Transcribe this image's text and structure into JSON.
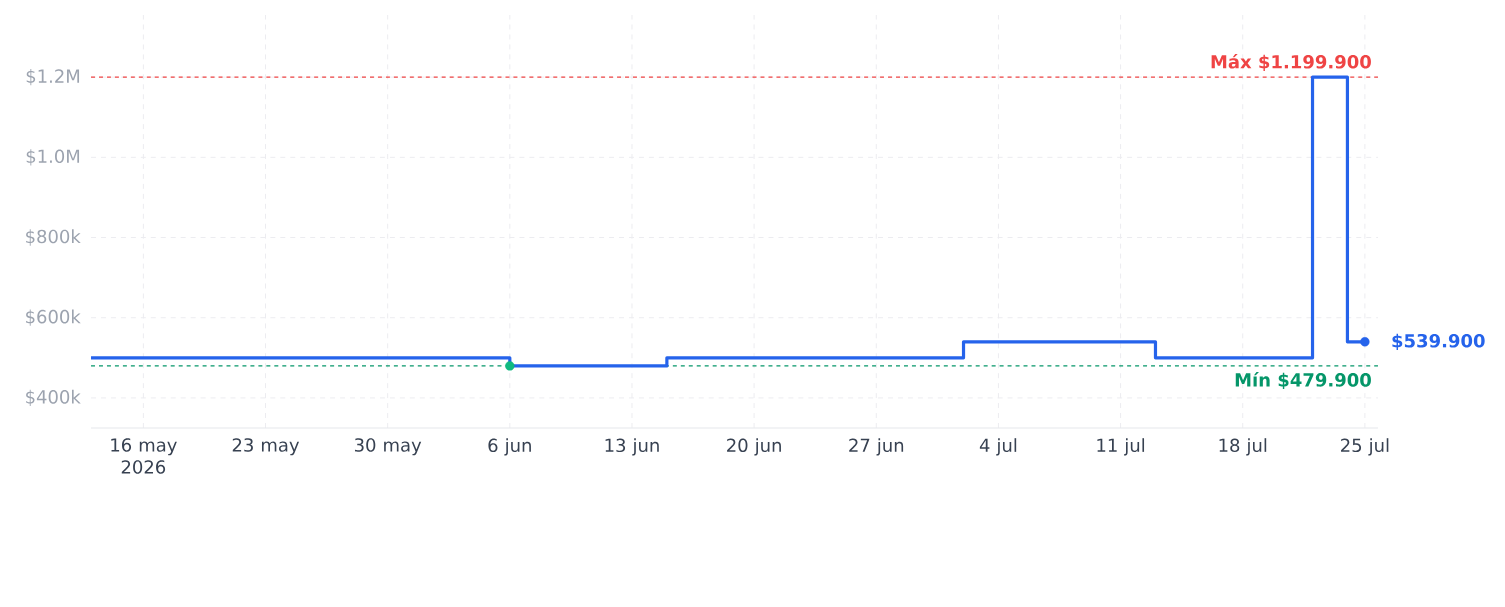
{
  "chart_data": {
    "type": "step",
    "x": [
      "2026-05-13",
      "2026-06-06",
      "2026-06-15",
      "2026-07-02",
      "2026-07-13",
      "2026-07-22",
      "2026-07-24",
      "2026-07-25"
    ],
    "series": [
      {
        "color": "#2563eb",
        "marker": "none",
        "values": [
          499900,
          479900,
          499900,
          539900,
          499900,
          1199900,
          539900,
          539900
        ]
      },
      {
        "type": "scatter",
        "color": "#10b981",
        "marker": "circle",
        "x": [
          "2026-06-06"
        ],
        "values": [
          479900
        ]
      },
      {
        "type": "scatter",
        "color": "#2563eb",
        "marker": "circle",
        "x": [
          "2026-07-25"
        ],
        "values": [
          539900
        ]
      }
    ],
    "xlim": [
      "2026-05-13",
      "2026-07-25T18:00"
    ],
    "xticks": [
      {
        "value": "2026-05-16",
        "label": "16 may 2026"
      },
      {
        "value": "2026-05-23",
        "label": "23 may"
      },
      {
        "value": "2026-05-30",
        "label": "30 may"
      },
      {
        "value": "2026-06-06",
        "label": "6 jun"
      },
      {
        "value": "2026-06-13",
        "label": "13 jun"
      },
      {
        "value": "2026-06-20",
        "label": "20 jun"
      },
      {
        "value": "2026-06-27",
        "label": "27 jun"
      },
      {
        "value": "2026-07-04",
        "label": "4 jul"
      },
      {
        "value": "2026-07-11",
        "label": "11 jul"
      },
      {
        "value": "2026-07-18",
        "label": "18 jul"
      },
      {
        "value": "2026-07-25",
        "label": "25 jul"
      }
    ],
    "ylim": [
      325000,
      1355000
    ],
    "yticks": [
      {
        "value": 400000,
        "label": "$400k"
      },
      {
        "value": 600000,
        "label": "$600k"
      },
      {
        "value": 800000,
        "label": "$800k"
      },
      {
        "value": 1000000,
        "label": "$1.0M"
      },
      {
        "value": 1200000,
        "label": "$1.2M"
      }
    ],
    "ref_lines": [
      {
        "axis": "y",
        "value": 1199900,
        "label": "Máx $1.199.900",
        "color": "#ef4444",
        "line_style": "dashed"
      },
      {
        "axis": "y",
        "value": 479900,
        "label": "Mín $479.900",
        "color": "#059669",
        "line_style": "dashed"
      }
    ],
    "annotations": [
      {
        "text": "$539.900",
        "x": "2026-07-25",
        "y": 539900
      }
    ],
    "grid": true
  }
}
